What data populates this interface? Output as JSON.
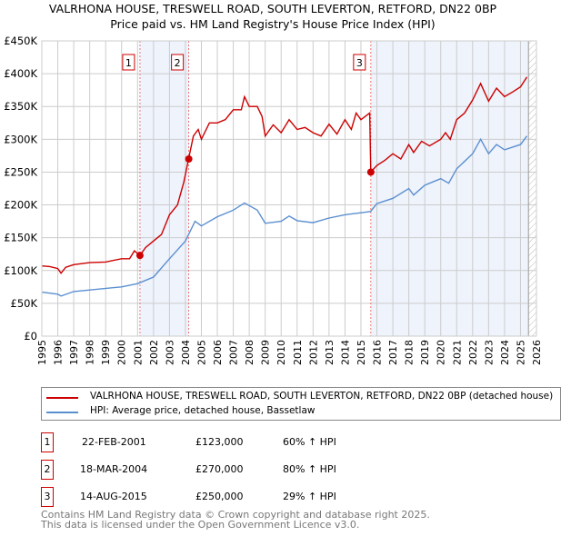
{
  "title": "VALRHONA HOUSE, TRESWELL ROAD, SOUTH LEVERTON, RETFORD, DN22 0BP",
  "subtitle": "Price paid vs. HM Land Registry's House Price Index (HPI)",
  "chart_data": {
    "type": "line",
    "xlim": [
      1995,
      2026
    ],
    "ylim": [
      0,
      450000
    ],
    "yticks": [
      0,
      50000,
      100000,
      150000,
      200000,
      250000,
      300000,
      350000,
      400000,
      450000
    ],
    "ytick_labels": [
      "£0",
      "£50K",
      "£100K",
      "£150K",
      "£200K",
      "£250K",
      "£300K",
      "£350K",
      "£400K",
      "£450K"
    ],
    "xticks": [
      1995,
      1996,
      1997,
      1998,
      1999,
      2000,
      2001,
      2002,
      2003,
      2004,
      2005,
      2006,
      2007,
      2008,
      2009,
      2010,
      2011,
      2012,
      2013,
      2014,
      2015,
      2016,
      2017,
      2018,
      2019,
      2020,
      2021,
      2022,
      2023,
      2024,
      2025,
      2026
    ],
    "grid": true,
    "shaded_ranges": [
      [
        2001.15,
        2004.21
      ],
      [
        2015.62,
        2025.5
      ]
    ],
    "hatched_range": [
      2025.5,
      2026
    ],
    "series": [
      {
        "name": "VALRHONA HOUSE, TRESWELL ROAD, SOUTH LEVERTON, RETFORD, DN22 0BP (detached house)",
        "color": "#cc0000",
        "x": [
          1995,
          1995.5,
          1996,
          1996.2,
          1996.5,
          1997,
          1998,
          1999,
          2000,
          2000.5,
          2000.8,
          2001.15,
          2001.5,
          2002,
          2002.5,
          2003,
          2003.5,
          2003.9,
          2004.2,
          2004.5,
          2004.8,
          2005,
          2005.5,
          2006,
          2006.5,
          2007,
          2007.5,
          2007.7,
          2008,
          2008.5,
          2008.8,
          2009,
          2009.5,
          2010,
          2010.5,
          2011,
          2011.5,
          2012,
          2012.5,
          2013,
          2013.5,
          2014,
          2014.4,
          2014.7,
          2015,
          2015.55,
          2015.62,
          2016,
          2016.5,
          2017,
          2017.5,
          2018,
          2018.3,
          2018.8,
          2019.3,
          2020,
          2020.3,
          2020.6,
          2021,
          2021.5,
          2022,
          2022.5,
          2023,
          2023.5,
          2024,
          2024.5,
          2025,
          2025.4
        ],
        "y": [
          107000,
          106000,
          103000,
          96000,
          105000,
          109000,
          112000,
          113000,
          118000,
          118000,
          130000,
          123000,
          135000,
          145000,
          155000,
          185000,
          200000,
          235000,
          270000,
          305000,
          315000,
          300000,
          325000,
          325000,
          330000,
          345000,
          345000,
          365000,
          350000,
          350000,
          335000,
          305000,
          322000,
          310000,
          330000,
          315000,
          318000,
          310000,
          305000,
          323000,
          308000,
          330000,
          315000,
          340000,
          330000,
          340000,
          250000,
          260000,
          268000,
          278000,
          270000,
          292000,
          280000,
          297000,
          290000,
          300000,
          310000,
          300000,
          330000,
          340000,
          360000,
          385000,
          358000,
          378000,
          365000,
          372000,
          380000,
          395000
        ]
      },
      {
        "name": "HPI: Average price, detached house, Bassetlaw",
        "color": "#5b8fd0",
        "x": [
          1995,
          1996,
          1996.2,
          1997,
          2000,
          2001,
          2002,
          2003,
          2004,
          2004.6,
          2005,
          2006,
          2007,
          2007.7,
          2008.5,
          2009,
          2010,
          2010.5,
          2011,
          2012,
          2013,
          2014,
          2015,
          2015.6,
          2016,
          2017,
          2018,
          2018.3,
          2019,
          2020,
          2020.5,
          2021,
          2022,
          2022.5,
          2023,
          2023.5,
          2024,
          2025,
          2025.4
        ],
        "y": [
          67000,
          64000,
          61000,
          68000,
          75000,
          80000,
          90000,
          118000,
          145000,
          175000,
          168000,
          182000,
          192000,
          203000,
          192000,
          172000,
          175000,
          183000,
          176000,
          173000,
          180000,
          185000,
          188000,
          190000,
          202000,
          210000,
          225000,
          215000,
          230000,
          240000,
          233000,
          255000,
          278000,
          300000,
          278000,
          292000,
          284000,
          292000,
          305000
        ]
      }
    ],
    "sales": [
      {
        "label": "1",
        "x": 2001.15,
        "y": 123000
      },
      {
        "label": "2",
        "x": 2004.21,
        "y": 270000
      },
      {
        "label": "3",
        "x": 2015.62,
        "y": 250000
      }
    ]
  },
  "legend": {
    "red": "VALRHONA HOUSE, TRESWELL ROAD, SOUTH LEVERTON, RETFORD, DN22 0BP (detached house)",
    "blue": "HPI: Average price, detached house, Bassetlaw"
  },
  "transactions": [
    {
      "num": "1",
      "date": "22-FEB-2001",
      "price": "£123,000",
      "hpi": "60% ↑ HPI"
    },
    {
      "num": "2",
      "date": "18-MAR-2004",
      "price": "£270,000",
      "hpi": "80% ↑ HPI"
    },
    {
      "num": "3",
      "date": "14-AUG-2015",
      "price": "£250,000",
      "hpi": "29% ↑ HPI"
    }
  ],
  "footer": [
    "Contains HM Land Registry data © Crown copyright and database right 2025.",
    "This data is licensed under the Open Government Licence v3.0."
  ]
}
